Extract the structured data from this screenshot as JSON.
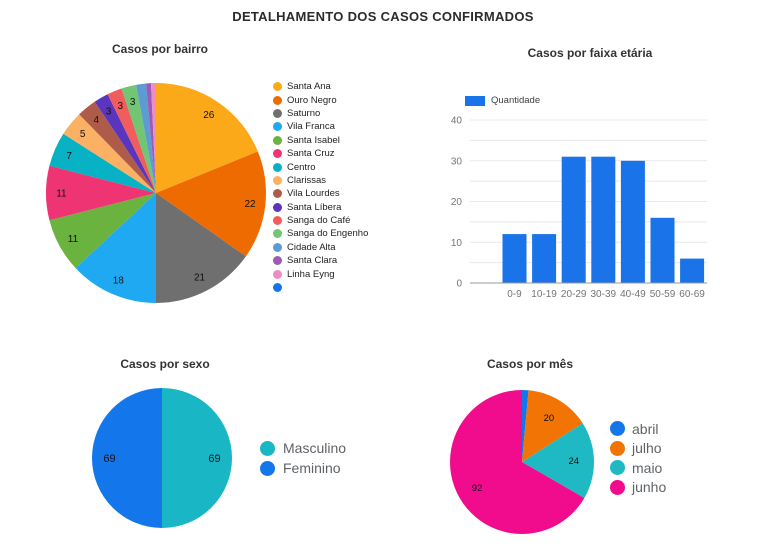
{
  "page_title": "DETALHAMENTO DOS CASOS CONFIRMADOS",
  "chart_data": [
    {
      "id": "bairro",
      "type": "pie",
      "title": "Casos por bairro",
      "legend_position": "right",
      "label_min_value": 3,
      "slices": [
        {
          "label": "Santa Ana",
          "value": 26,
          "color": "#FBA919"
        },
        {
          "label": "Ouro Negro",
          "value": 22,
          "color": "#EE6B01"
        },
        {
          "label": "Saturno",
          "value": 21,
          "color": "#6F6F6F"
        },
        {
          "label": "Vila Franca",
          "value": 18,
          "color": "#1FA9F2"
        },
        {
          "label": "Santa Isabel",
          "value": 11,
          "color": "#69B33E"
        },
        {
          "label": "Santa Cruz",
          "value": 11,
          "color": "#EF3473"
        },
        {
          "label": "Centro",
          "value": 7,
          "color": "#06B2C3"
        },
        {
          "label": "Clarissas",
          "value": 5,
          "color": "#FBB064"
        },
        {
          "label": "Vila Lourdes",
          "value": 4,
          "color": "#AE5C49"
        },
        {
          "label": "Santa Líbera",
          "value": 3,
          "color": "#5A35BD"
        },
        {
          "label": "Sanga do Café",
          "value": 3,
          "color": "#F15D5C"
        },
        {
          "label": "Sanga do Engenho",
          "value": 3,
          "color": "#72C573"
        },
        {
          "label": "Cidade Alta",
          "value": 2,
          "color": "#5D9BD3"
        },
        {
          "label": "Santa Clara",
          "value": 1,
          "color": "#9D5BB5"
        },
        {
          "label": "Linha Eyng",
          "value": 1,
          "color": "#EF8DC2"
        },
        {
          "label": "",
          "value": 0,
          "color": "#1474EC"
        }
      ]
    },
    {
      "id": "faixa_etaria",
      "type": "bar",
      "title": "Casos por faixa etária",
      "legend": "Quantidade",
      "categories": [
        "0-9",
        "10-19",
        "20-29",
        "30-39",
        "40-49",
        "50-59",
        "60-69"
      ],
      "values": [
        12,
        12,
        31,
        31,
        30,
        16,
        6
      ],
      "bar_color": "#1A73E8",
      "ylim": [
        0,
        40
      ],
      "yticks": [
        0,
        10,
        20,
        30,
        40
      ],
      "grid_step": 5,
      "grid": "on"
    },
    {
      "id": "sexo",
      "type": "pie",
      "title": "Casos por sexo",
      "legend_position": "right",
      "label_min_value": 1,
      "slices": [
        {
          "label": "Masculino",
          "value": 69,
          "color": "#19B6C6"
        },
        {
          "label": "Feminino",
          "value": 69,
          "color": "#1377EB"
        }
      ]
    },
    {
      "id": "mes",
      "type": "pie",
      "title": "Casos por mês",
      "legend_position": "right",
      "label_min_value": 3,
      "slices": [
        {
          "label": "abril",
          "value": 2,
          "color": "#1377EB"
        },
        {
          "label": "julho",
          "value": 20,
          "color": "#F27405"
        },
        {
          "label": "maio",
          "value": 24,
          "color": "#1FB9C4"
        },
        {
          "label": "junho",
          "value": 92,
          "color": "#F10C8E"
        }
      ]
    }
  ]
}
